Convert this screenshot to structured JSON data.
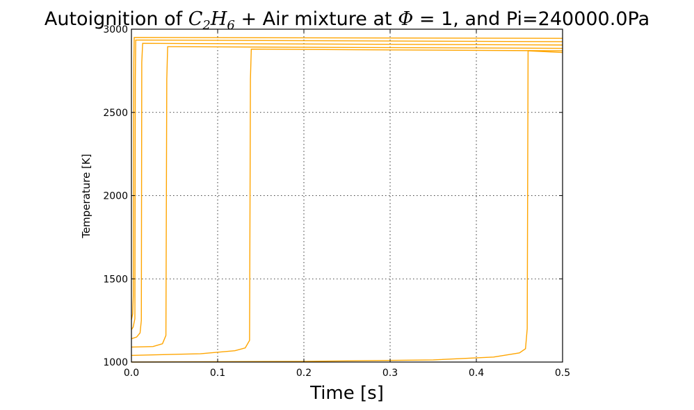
{
  "chart_data": {
    "type": "line",
    "title": {
      "prefix": "Autoignition of ",
      "species_base1": "C",
      "species_sub1": "2",
      "species_base2": "H",
      "species_sub2": "6",
      "middle": " + Air mixture at ",
      "phi_symbol": "Φ",
      "suffix": " = 1, and Pi=240000.0Pa"
    },
    "xlabel": "Time [s]",
    "ylabel": "Temperature [K]",
    "xlim": [
      0.0,
      0.5
    ],
    "ylim": [
      1000,
      3000
    ],
    "xticks": [
      "0.0",
      "0.1",
      "0.2",
      "0.3",
      "0.4",
      "0.5"
    ],
    "yticks": [
      "1000",
      "1500",
      "2000",
      "2500",
      "3000"
    ],
    "grid": true,
    "line_color": "#ffa500",
    "series": [
      {
        "x": [
          0.0,
          0.0015,
          0.0022,
          0.0028,
          0.0032,
          0.5
        ],
        "y": [
          1255,
          1290,
          1400,
          2800,
          2950,
          2945
        ]
      },
      {
        "x": [
          0.0,
          0.002,
          0.004,
          0.0045,
          0.005,
          0.5
        ],
        "y": [
          1195,
          1210,
          1260,
          2700,
          2935,
          2925
        ]
      },
      {
        "x": [
          0.0,
          0.006,
          0.01,
          0.0115,
          0.012,
          0.013,
          0.5
        ],
        "y": [
          1140,
          1150,
          1175,
          1250,
          2800,
          2915,
          2905
        ]
      },
      {
        "x": [
          0.0,
          0.025,
          0.036,
          0.04,
          0.041,
          0.042,
          0.5
        ],
        "y": [
          1090,
          1093,
          1110,
          1160,
          2700,
          2895,
          2885
        ]
      },
      {
        "x": [
          0.0,
          0.08,
          0.12,
          0.132,
          0.137,
          0.138,
          0.139,
          0.5
        ],
        "y": [
          1040,
          1050,
          1068,
          1085,
          1130,
          2700,
          2880,
          2870
        ]
      },
      {
        "x": [
          0.0,
          0.2,
          0.35,
          0.42,
          0.45,
          0.457,
          0.459,
          0.46,
          0.5
        ],
        "y": [
          1000,
          1004,
          1013,
          1030,
          1055,
          1080,
          1200,
          2870,
          2860
        ]
      }
    ]
  }
}
